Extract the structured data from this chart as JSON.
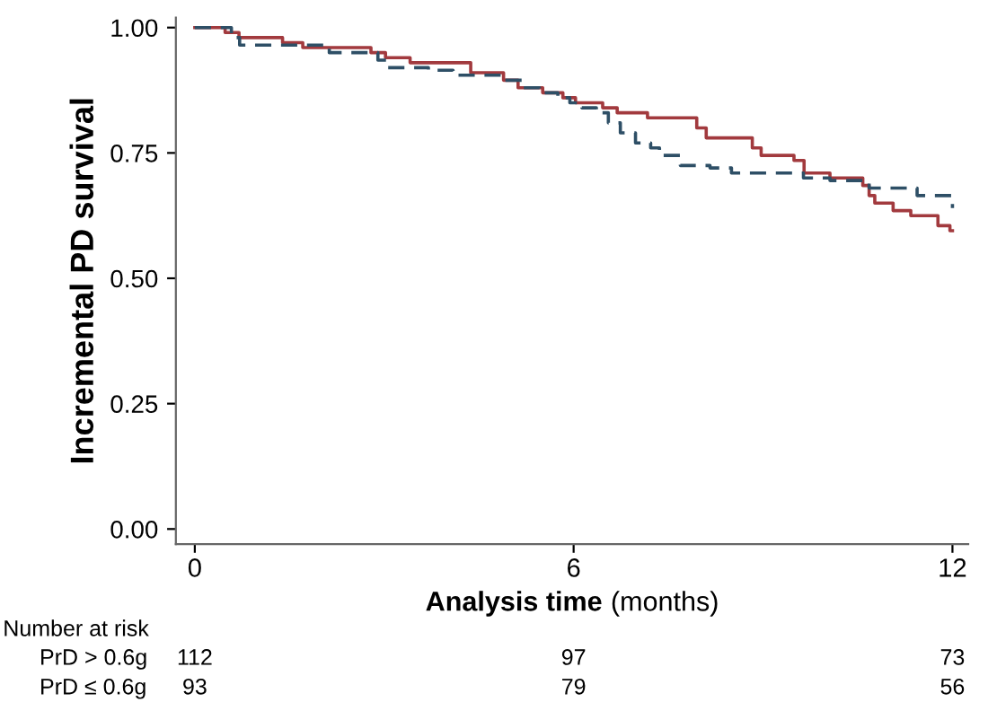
{
  "chart_data": {
    "type": "step",
    "xlabel": "Analysis time (months)",
    "ylabel": "Incremental PD survival",
    "xlim": [
      -0.3,
      12.25
    ],
    "xticks": [
      0,
      6,
      12
    ],
    "ylim": [
      -0.03,
      1.02
    ],
    "yticks": [
      {
        "value": 0,
        "label": "0.00"
      },
      {
        "value": 0.25,
        "label": "0.25"
      },
      {
        "value": 0.5,
        "label": "0.50"
      },
      {
        "value": 0.75,
        "label": "0.75"
      },
      {
        "value": 1,
        "label": "1.00"
      }
    ],
    "grid": false,
    "legend": false,
    "series": [
      {
        "color": "#a23a3e",
        "line_style": "solid",
        "x": [
          0,
          0.48,
          0.7,
          1.39,
          1.71,
          2.79,
          3.02,
          3.41,
          4.37,
          4.89,
          5.12,
          5.51,
          5.83,
          6.03,
          6.46,
          6.69,
          7.17,
          7.95,
          8.1,
          8.83,
          8.97,
          9.49,
          9.65,
          10.06,
          10.58,
          10.68,
          10.77,
          11.06,
          11.34,
          11.77,
          11.96,
          12.0
        ],
        "values": [
          1.0,
          0.99,
          0.98,
          0.97,
          0.96,
          0.95,
          0.94,
          0.93,
          0.91,
          0.895,
          0.88,
          0.87,
          0.86,
          0.85,
          0.84,
          0.83,
          0.82,
          0.8,
          0.78,
          0.76,
          0.745,
          0.735,
          0.71,
          0.7,
          0.685,
          0.665,
          0.65,
          0.635,
          0.625,
          0.605,
          0.595,
          0.595
        ]
      },
      {
        "color": "#2e4f66",
        "line_style": "dashed",
        "x": [
          0,
          0.58,
          0.71,
          2.13,
          2.9,
          3.04,
          3.7,
          4.09,
          4.89,
          5.18,
          5.46,
          5.75,
          5.94,
          6.13,
          6.36,
          6.55,
          6.74,
          6.98,
          7.22,
          7.36,
          7.69,
          8.16,
          8.5,
          9.64,
          10.06,
          10.68,
          11.44,
          12.0,
          12.0
        ],
        "values": [
          1.0,
          0.98,
          0.965,
          0.95,
          0.935,
          0.92,
          0.915,
          0.905,
          0.895,
          0.88,
          0.87,
          0.86,
          0.85,
          0.84,
          0.83,
          0.81,
          0.79,
          0.77,
          0.76,
          0.745,
          0.725,
          0.72,
          0.71,
          0.7,
          0.695,
          0.68,
          0.665,
          0.665,
          0.64
        ]
      }
    ],
    "annotations": [
      "Number at risk",
      "PrD > 0.6g",
      "112",
      "97",
      "73",
      "PrD ≤ 0.6g",
      "93",
      "79",
      "56"
    ]
  }
}
